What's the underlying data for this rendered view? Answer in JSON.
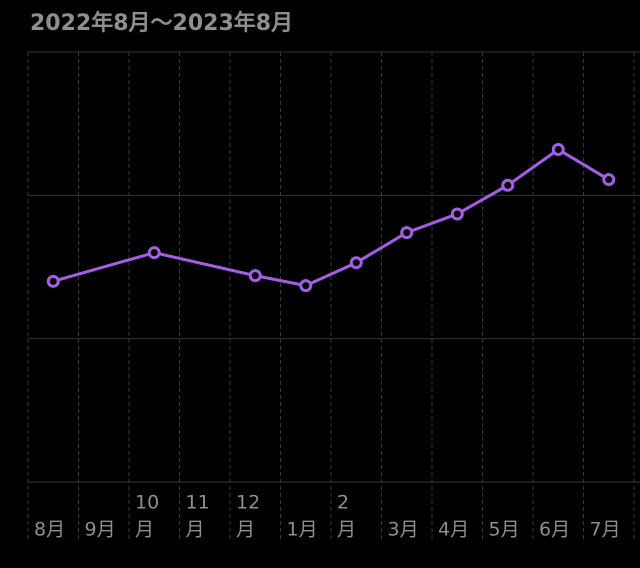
{
  "chart_data": {
    "type": "line",
    "title": "2022年8月〜2023年8月",
    "categories": [
      [
        "8月"
      ],
      [
        "9月"
      ],
      [
        "10",
        "月"
      ],
      [
        "11",
        "月"
      ],
      [
        "12",
        "月"
      ],
      [
        "1月"
      ],
      [
        "2",
        "月"
      ],
      [
        "3月"
      ],
      [
        "4月"
      ],
      [
        "5月"
      ],
      [
        "6月"
      ],
      [
        "7月"
      ]
    ],
    "series": [
      {
        "color": "#a45ee5",
        "values": [
          1.4,
          null,
          1.6,
          null,
          1.44,
          1.37,
          1.53,
          1.74,
          1.87,
          2.07,
          2.32,
          2.11
        ]
      }
    ],
    "connect_nulls": true,
    "ylim": [
      0,
      3
    ],
    "yticks": [
      0,
      1,
      2,
      3
    ],
    "grid": true
  }
}
